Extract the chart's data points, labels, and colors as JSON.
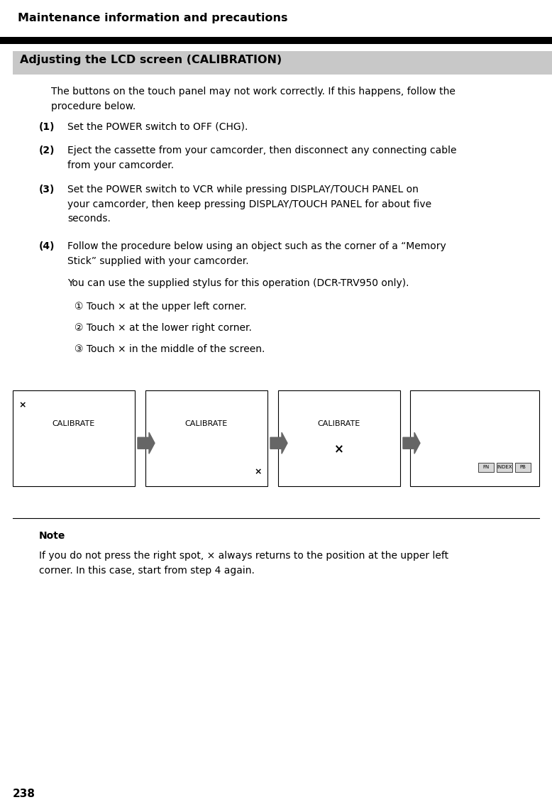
{
  "page_number": "238",
  "title": "Maintenance information and precautions",
  "section_title": "Adjusting the LCD screen (CALIBRATION)",
  "intro_text": "The buttons on the touch panel may not work correctly. If this happens, follow the\nprocedure below.",
  "step1_label": "(1)",
  "step1_text": "Set the POWER switch to OFF (CHG).",
  "step2_label": "(2)",
  "step2_text": "Eject the cassette from your camcorder, then disconnect any connecting cable\nfrom your camcorder.",
  "step3_label": "(3)",
  "step3_text": "Set the POWER switch to VCR while pressing DISPLAY/TOUCH PANEL on\nyour camcorder, then keep pressing DISPLAY/TOUCH PANEL for about five\nseconds.",
  "step4_label": "(4)",
  "step4_text": "Follow the procedure below using an object such as the corner of a “Memory\nStick” supplied with your camcorder.",
  "step4_extra": "You can use the supplied stylus for this operation (DCR-TRV950 only).",
  "substep1": "① Touch × at the upper left corner.",
  "substep2": "② Touch × at the lower right corner.",
  "substep3": "③ Touch × in the middle of the screen.",
  "note_title": "Note",
  "note_text": "If you do not press the right spot, × always returns to the position at the upper left\ncorner. In this case, start from step 4 again.",
  "bg_color": "#ffffff",
  "section_bg_color": "#c8c8c8",
  "arrow_color": "#666666",
  "panel_labels": [
    "CALIBRATE",
    "CALIBRATE",
    "CALIBRATE",
    ""
  ],
  "bottom_buttons": [
    "FN",
    "INDEX",
    "PB"
  ]
}
